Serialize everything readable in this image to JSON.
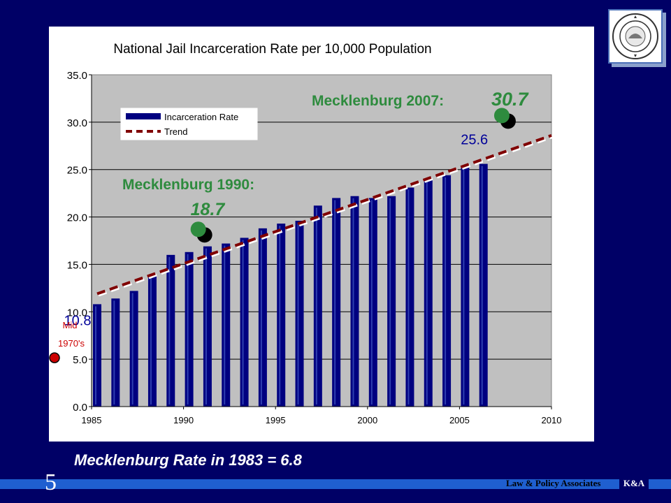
{
  "colors": {
    "background": "#000066",
    "plot_area": "#C0C0C0",
    "bar": "#000080",
    "trend": "#800000",
    "annotation_green": "#2E8B3E",
    "annotation_blue": "#000099",
    "annotation_red": "#CC0000",
    "accent_bar": "#1F5FD0"
  },
  "chart_data": {
    "type": "bar",
    "title": "National Jail Incarceration Rate per 10,000 Population",
    "xlabel": "",
    "ylabel": "",
    "ylim": [
      0,
      35
    ],
    "xlim": [
      1985,
      2010
    ],
    "grid": true,
    "legend_position": "top-left",
    "y_ticks": [
      "0.0",
      "5.0",
      "10.0",
      "15.0",
      "20.0",
      "25.0",
      "30.0",
      "35.0"
    ],
    "x_ticks": [
      "1985",
      "1990",
      "1995",
      "2000",
      "2005",
      "2010"
    ],
    "series": [
      {
        "name": "Incarceration Rate",
        "type": "bar",
        "x": [
          1985,
          1986,
          1987,
          1988,
          1989,
          1990,
          1991,
          1992,
          1993,
          1994,
          1995,
          1996,
          1997,
          1998,
          1999,
          2000,
          2001,
          2002,
          2003,
          2004,
          2005,
          2006
        ],
        "values": [
          10.8,
          11.4,
          12.2,
          13.9,
          16.0,
          16.3,
          16.9,
          17.2,
          17.8,
          18.8,
          19.3,
          19.6,
          21.2,
          22.0,
          22.2,
          22.0,
          22.2,
          23.1,
          23.9,
          24.4,
          25.2,
          25.6
        ]
      },
      {
        "name": "Trend",
        "type": "line",
        "style": "dashed",
        "x": [
          1985,
          2010
        ],
        "values": [
          11.9,
          28.6
        ]
      }
    ],
    "annotations": [
      {
        "text_prefix": "Mecklenburg 1990: ",
        "value_text": "18.7",
        "x": 1990.8,
        "y": 18.7
      },
      {
        "text_prefix": "Mecklenburg 2007: ",
        "value_text": "30.7",
        "x": 2007.3,
        "y": 30.7
      }
    ],
    "data_labels": [
      {
        "text": "10.8",
        "x": 1985,
        "y": 10.8
      },
      {
        "text": "25.6",
        "x": 2006,
        "y": 25.6
      }
    ],
    "mid_1970s": {
      "line1": "Mid",
      "line2": "1970's",
      "y": 5.0
    }
  },
  "bottom_note": "Mecklenburg Rate in 1983 = 6.8",
  "footer": {
    "page_number": "5",
    "label": "Law & Policy Associates",
    "logo_text": "K&A"
  }
}
